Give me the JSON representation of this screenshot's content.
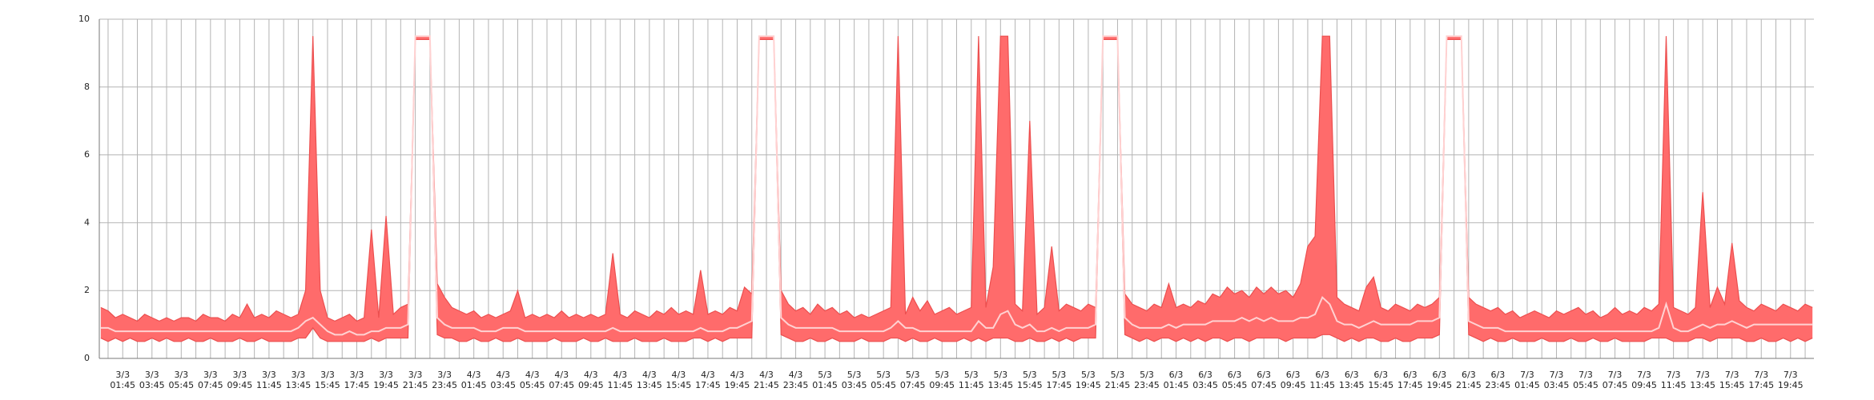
{
  "chart_data": {
    "type": "range-area",
    "ylim": [
      0,
      10
    ],
    "yticks": [
      0,
      2,
      4,
      6,
      8,
      10
    ],
    "grid": true,
    "categories": [
      null,
      null,
      null,
      "3/3\n01:45",
      null,
      null,
      null,
      "3/3\n03:45",
      null,
      null,
      null,
      "3/3\n05:45",
      null,
      null,
      null,
      "3/3\n07:45",
      null,
      null,
      null,
      "3/3\n09:45",
      null,
      null,
      null,
      "3/3\n11:45",
      null,
      null,
      null,
      "3/3\n13:45",
      null,
      null,
      null,
      "3/3\n15:45",
      null,
      null,
      null,
      "3/3\n17:45",
      null,
      null,
      null,
      "3/3\n19:45",
      null,
      null,
      null,
      "3/3\n21:45",
      null,
      null,
      null,
      "3/3\n23:45",
      null,
      null,
      null,
      "4/3\n01:45",
      null,
      null,
      null,
      "4/3\n03:45",
      null,
      null,
      null,
      "4/3\n05:45",
      null,
      null,
      null,
      "4/3\n07:45",
      null,
      null,
      null,
      "4/3\n09:45",
      null,
      null,
      null,
      "4/3\n11:45",
      null,
      null,
      null,
      "4/3\n13:45",
      null,
      null,
      null,
      "4/3\n15:45",
      null,
      null,
      null,
      "4/3\n17:45",
      null,
      null,
      null,
      "4/3\n19:45",
      null,
      null,
      null,
      "4/3\n21:45",
      null,
      null,
      null,
      "4/3\n23:45",
      null,
      null,
      null,
      "5/3\n01:45",
      null,
      null,
      null,
      "5/3\n03:45",
      null,
      null,
      null,
      "5/3\n05:45",
      null,
      null,
      null,
      "5/3\n07:45",
      null,
      null,
      null,
      "5/3\n09:45",
      null,
      null,
      null,
      "5/3\n11:45",
      null,
      null,
      null,
      "5/3\n13:45",
      null,
      null,
      null,
      "5/3\n15:45",
      null,
      null,
      null,
      "5/3\n17:45",
      null,
      null,
      null,
      "5/3\n19:45",
      null,
      null,
      null,
      "5/3\n21:45",
      null,
      null,
      null,
      "5/3\n23:45",
      null,
      null,
      null,
      "6/3\n01:45",
      null,
      null,
      null,
      "6/3\n03:45",
      null,
      null,
      null,
      "6/3\n05:45",
      null,
      null,
      null,
      "6/3\n07:45",
      null,
      null,
      null,
      "6/3\n09:45",
      null,
      null,
      null,
      "6/3\n11:45",
      null,
      null,
      null,
      "6/3\n13:45",
      null,
      null,
      null,
      "6/3\n15:45",
      null,
      null,
      null,
      "6/3\n17:45",
      null,
      null,
      null,
      "6/3\n19:45",
      null,
      null,
      null,
      "6/3\n21:45",
      null,
      null,
      null,
      "6/3\n23:45",
      null,
      null,
      null,
      "7/3\n01:45",
      null,
      null,
      null,
      "7/3\n03:45",
      null,
      null,
      null,
      "7/3\n05:45",
      null,
      null,
      null,
      "7/3\n07:45",
      null,
      null,
      null,
      "7/3\n09:45",
      null,
      null,
      null,
      "7/3\n11:45",
      null,
      null,
      null,
      "7/3\n13:45",
      null,
      null,
      null,
      "7/3\n15:45",
      null,
      null,
      null,
      "7/3\n17:45",
      null,
      null,
      null,
      "7/3\n19:45",
      null,
      null,
      null
    ],
    "band": {
      "color": "#ff6b6b",
      "edge_color": "#ec4f4f",
      "upper": [
        1.5,
        1.4,
        1.2,
        1.3,
        1.2,
        1.1,
        1.3,
        1.2,
        1.1,
        1.2,
        1.1,
        1.2,
        1.2,
        1.1,
        1.3,
        1.2,
        1.2,
        1.1,
        1.3,
        1.2,
        1.6,
        1.2,
        1.3,
        1.2,
        1.4,
        1.3,
        1.2,
        1.3,
        2.0,
        9.5,
        2.0,
        1.2,
        1.1,
        1.2,
        1.3,
        1.1,
        1.2,
        3.8,
        1.2,
        4.2,
        1.3,
        1.5,
        1.6,
        9.5,
        9.5,
        9.5,
        2.2,
        1.8,
        1.5,
        1.4,
        1.3,
        1.4,
        1.2,
        1.3,
        1.2,
        1.3,
        1.4,
        2.0,
        1.2,
        1.3,
        1.2,
        1.3,
        1.2,
        1.4,
        1.2,
        1.3,
        1.2,
        1.3,
        1.2,
        1.3,
        3.1,
        1.3,
        1.2,
        1.4,
        1.3,
        1.2,
        1.4,
        1.3,
        1.5,
        1.3,
        1.4,
        1.3,
        2.6,
        1.3,
        1.4,
        1.3,
        1.5,
        1.4,
        2.1,
        1.9,
        9.5,
        9.5,
        9.5,
        2.0,
        1.6,
        1.4,
        1.5,
        1.3,
        1.6,
        1.4,
        1.5,
        1.3,
        1.4,
        1.2,
        1.3,
        1.2,
        1.3,
        1.4,
        1.5,
        9.5,
        1.3,
        1.8,
        1.4,
        1.7,
        1.3,
        1.4,
        1.5,
        1.3,
        1.4,
        1.5,
        9.5,
        1.5,
        2.7,
        9.5,
        9.5,
        1.6,
        1.4,
        7.0,
        1.3,
        1.5,
        3.3,
        1.4,
        1.6,
        1.5,
        1.4,
        1.6,
        1.5,
        9.5,
        9.5,
        9.5,
        1.9,
        1.6,
        1.5,
        1.4,
        1.6,
        1.5,
        2.2,
        1.5,
        1.6,
        1.5,
        1.7,
        1.6,
        1.9,
        1.8,
        2.1,
        1.9,
        2.0,
        1.8,
        2.1,
        1.9,
        2.1,
        1.9,
        2.0,
        1.8,
        2.2,
        3.3,
        3.6,
        9.5,
        9.5,
        1.8,
        1.6,
        1.5,
        1.4,
        2.1,
        2.4,
        1.5,
        1.4,
        1.6,
        1.5,
        1.4,
        1.6,
        1.5,
        1.6,
        1.8,
        9.5,
        9.5,
        9.5,
        1.8,
        1.6,
        1.5,
        1.4,
        1.5,
        1.3,
        1.4,
        1.2,
        1.3,
        1.4,
        1.3,
        1.2,
        1.4,
        1.3,
        1.4,
        1.5,
        1.3,
        1.4,
        1.2,
        1.3,
        1.5,
        1.3,
        1.4,
        1.3,
        1.5,
        1.4,
        1.6,
        9.5,
        1.5,
        1.4,
        1.3,
        1.5,
        4.9,
        1.5,
        2.1,
        1.6,
        3.4,
        1.7,
        1.5,
        1.4,
        1.6,
        1.5,
        1.4,
        1.6,
        1.5,
        1.4,
        1.6,
        1.5
      ],
      "lower": [
        0.6,
        0.5,
        0.6,
        0.5,
        0.6,
        0.5,
        0.5,
        0.6,
        0.5,
        0.6,
        0.5,
        0.5,
        0.6,
        0.5,
        0.5,
        0.6,
        0.5,
        0.5,
        0.5,
        0.6,
        0.5,
        0.5,
        0.6,
        0.5,
        0.5,
        0.5,
        0.5,
        0.6,
        0.6,
        0.9,
        0.6,
        0.5,
        0.5,
        0.5,
        0.5,
        0.5,
        0.5,
        0.6,
        0.5,
        0.6,
        0.6,
        0.6,
        0.6,
        9.4,
        9.4,
        9.4,
        0.7,
        0.6,
        0.6,
        0.5,
        0.5,
        0.6,
        0.5,
        0.5,
        0.6,
        0.5,
        0.5,
        0.6,
        0.5,
        0.5,
        0.5,
        0.5,
        0.6,
        0.5,
        0.5,
        0.5,
        0.6,
        0.5,
        0.5,
        0.6,
        0.5,
        0.5,
        0.5,
        0.6,
        0.5,
        0.5,
        0.5,
        0.6,
        0.5,
        0.5,
        0.5,
        0.6,
        0.6,
        0.5,
        0.6,
        0.5,
        0.6,
        0.6,
        0.6,
        0.6,
        9.4,
        9.4,
        9.4,
        0.7,
        0.6,
        0.5,
        0.5,
        0.6,
        0.5,
        0.5,
        0.6,
        0.5,
        0.5,
        0.5,
        0.6,
        0.5,
        0.5,
        0.5,
        0.6,
        0.6,
        0.5,
        0.6,
        0.5,
        0.5,
        0.6,
        0.5,
        0.5,
        0.5,
        0.6,
        0.5,
        0.6,
        0.5,
        0.6,
        0.6,
        0.6,
        0.5,
        0.5,
        0.6,
        0.5,
        0.5,
        0.6,
        0.5,
        0.6,
        0.5,
        0.6,
        0.6,
        0.6,
        9.4,
        9.4,
        9.4,
        0.7,
        0.6,
        0.5,
        0.6,
        0.5,
        0.6,
        0.6,
        0.5,
        0.6,
        0.5,
        0.6,
        0.5,
        0.6,
        0.6,
        0.5,
        0.6,
        0.6,
        0.5,
        0.6,
        0.6,
        0.6,
        0.6,
        0.5,
        0.6,
        0.6,
        0.6,
        0.6,
        0.7,
        0.7,
        0.6,
        0.5,
        0.6,
        0.5,
        0.6,
        0.6,
        0.5,
        0.5,
        0.6,
        0.5,
        0.5,
        0.6,
        0.6,
        0.6,
        0.7,
        9.4,
        9.4,
        9.4,
        0.7,
        0.6,
        0.5,
        0.6,
        0.5,
        0.5,
        0.6,
        0.5,
        0.5,
        0.5,
        0.6,
        0.5,
        0.5,
        0.5,
        0.6,
        0.5,
        0.5,
        0.6,
        0.5,
        0.5,
        0.6,
        0.5,
        0.5,
        0.5,
        0.5,
        0.6,
        0.6,
        0.6,
        0.5,
        0.5,
        0.5,
        0.6,
        0.6,
        0.5,
        0.6,
        0.6,
        0.6,
        0.6,
        0.5,
        0.5,
        0.6,
        0.5,
        0.5,
        0.6,
        0.5,
        0.6,
        0.5,
        0.6
      ]
    },
    "line": {
      "color": "#ffd2d2",
      "values": [
        0.9,
        0.9,
        0.8,
        0.8,
        0.8,
        0.8,
        0.8,
        0.8,
        0.8,
        0.8,
        0.8,
        0.8,
        0.8,
        0.8,
        0.8,
        0.8,
        0.8,
        0.8,
        0.8,
        0.8,
        0.8,
        0.8,
        0.8,
        0.8,
        0.8,
        0.8,
        0.8,
        0.9,
        1.1,
        1.2,
        1.0,
        0.8,
        0.7,
        0.7,
        0.8,
        0.7,
        0.7,
        0.8,
        0.8,
        0.9,
        0.9,
        0.9,
        1.0,
        9.5,
        9.5,
        9.5,
        1.2,
        1.0,
        0.9,
        0.9,
        0.9,
        0.9,
        0.8,
        0.8,
        0.8,
        0.9,
        0.9,
        0.9,
        0.8,
        0.8,
        0.8,
        0.8,
        0.8,
        0.8,
        0.8,
        0.8,
        0.8,
        0.8,
        0.8,
        0.8,
        0.9,
        0.8,
        0.8,
        0.8,
        0.8,
        0.8,
        0.8,
        0.8,
        0.8,
        0.8,
        0.8,
        0.8,
        0.9,
        0.8,
        0.8,
        0.8,
        0.9,
        0.9,
        1.0,
        1.1,
        9.5,
        9.5,
        9.5,
        1.2,
        1.0,
        0.9,
        0.9,
        0.9,
        0.9,
        0.9,
        0.9,
        0.8,
        0.8,
        0.8,
        0.8,
        0.8,
        0.8,
        0.8,
        0.9,
        1.1,
        0.9,
        0.9,
        0.8,
        0.8,
        0.8,
        0.8,
        0.8,
        0.8,
        0.8,
        0.8,
        1.1,
        0.9,
        0.9,
        1.3,
        1.4,
        1.0,
        0.9,
        1.0,
        0.8,
        0.8,
        0.9,
        0.8,
        0.9,
        0.9,
        0.9,
        0.9,
        1.0,
        9.5,
        9.5,
        9.5,
        1.2,
        1.0,
        0.9,
        0.9,
        0.9,
        0.9,
        1.0,
        0.9,
        1.0,
        1.0,
        1.0,
        1.0,
        1.1,
        1.1,
        1.1,
        1.1,
        1.2,
        1.1,
        1.2,
        1.1,
        1.2,
        1.1,
        1.1,
        1.1,
        1.2,
        1.2,
        1.3,
        1.8,
        1.6,
        1.1,
        1.0,
        1.0,
        0.9,
        1.0,
        1.1,
        1.0,
        1.0,
        1.0,
        1.0,
        1.0,
        1.1,
        1.1,
        1.1,
        1.2,
        9.5,
        9.5,
        9.5,
        1.1,
        1.0,
        0.9,
        0.9,
        0.9,
        0.8,
        0.8,
        0.8,
        0.8,
        0.8,
        0.8,
        0.8,
        0.8,
        0.8,
        0.8,
        0.8,
        0.8,
        0.8,
        0.8,
        0.8,
        0.8,
        0.8,
        0.8,
        0.8,
        0.8,
        0.8,
        0.9,
        1.6,
        0.9,
        0.8,
        0.8,
        0.9,
        1.0,
        0.9,
        1.0,
        1.0,
        1.1,
        1.0,
        0.9,
        1.0,
        1.0,
        1.0,
        1.0,
        1.0,
        1.0,
        1.0,
        1.0,
        1.0
      ]
    }
  }
}
